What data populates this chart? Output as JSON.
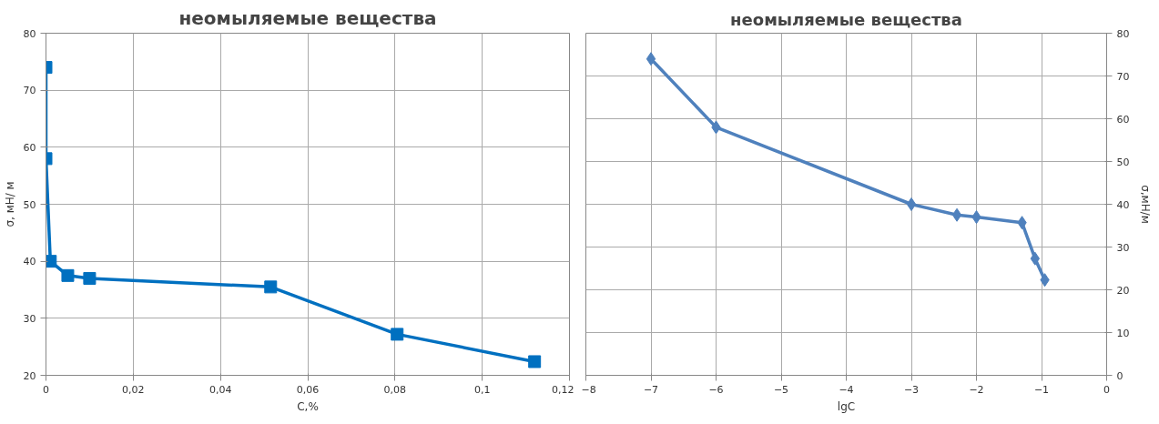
{
  "chart_data": [
    {
      "type": "line",
      "title": "неомыляемые вещества",
      "xlabel": "C,%",
      "ylabel": "σ, мН/ м",
      "x": [
        0,
        0,
        0.001,
        0.005,
        0.01,
        0.0515,
        0.0805,
        0.112
      ],
      "series": [
        {
          "color": "#0070c0",
          "values": [
            74,
            58,
            40,
            37.5,
            37,
            35.5,
            27.2,
            22.4
          ]
        }
      ],
      "xlim": [
        0,
        0.12
      ],
      "xticks": [
        0,
        {
          "value": 0.02,
          "label": "0,02"
        },
        {
          "value": 0.04,
          "label": "0,04"
        },
        {
          "value": 0.06,
          "label": "0,06"
        },
        {
          "value": 0.08,
          "label": "0,08"
        },
        {
          "value": 0.1,
          "label": "0,1"
        },
        {
          "value": 0.12,
          "label": "0,12"
        }
      ],
      "ylim": [
        20,
        80
      ],
      "yticks": [
        20,
        30,
        40,
        50,
        60,
        70,
        80
      ],
      "grid": true,
      "marker": "square",
      "line_style": "solid"
    },
    {
      "type": "line",
      "title": "неомыляемые вещества",
      "xlabel": "lgC",
      "ylabel": "σ,мН/м",
      "x": [
        -7,
        -6,
        -3,
        -2.3,
        -2,
        -1.3,
        -1.1,
        -0.95
      ],
      "series": [
        {
          "color": "#4f81bd",
          "values": [
            74,
            58,
            40,
            37.5,
            37,
            35.7,
            27.3,
            22.3
          ]
        }
      ],
      "xlim": [
        -8,
        0
      ],
      "xticks": [
        -8,
        -7,
        -6,
        -5,
        -4,
        -3,
        -2,
        -1,
        0
      ],
      "ylim": [
        0,
        80
      ],
      "yticks": [
        0,
        10,
        20,
        30,
        40,
        50,
        60,
        70,
        80
      ],
      "grid": true,
      "marker": "diamond",
      "line_style": "solid"
    }
  ]
}
